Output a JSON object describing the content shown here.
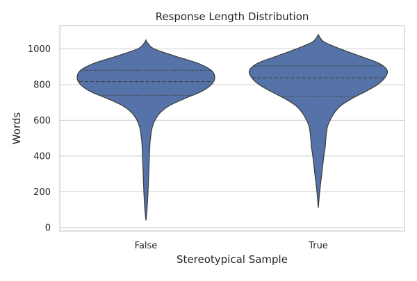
{
  "chart_data": {
    "type": "violin",
    "title": "Response Length Distribution",
    "xlabel": "Stereotypical Sample",
    "ylabel": "Words",
    "categories": [
      "False",
      "True"
    ],
    "ylim": [
      -20,
      1130
    ],
    "yticks": [
      0,
      200,
      400,
      600,
      800,
      1000
    ],
    "grid": "horizontal",
    "color": "#5573a8",
    "violins": [
      {
        "category": "False",
        "min": 40,
        "max": 1050,
        "q1": 740,
        "median": 817,
        "q3": 880,
        "density_profile": [
          [
            40,
            0.0
          ],
          [
            100,
            0.015
          ],
          [
            200,
            0.03
          ],
          [
            300,
            0.04
          ],
          [
            400,
            0.05
          ],
          [
            480,
            0.06
          ],
          [
            560,
            0.09
          ],
          [
            600,
            0.13
          ],
          [
            640,
            0.2
          ],
          [
            680,
            0.33
          ],
          [
            720,
            0.55
          ],
          [
            760,
            0.8
          ],
          [
            800,
            0.95
          ],
          [
            840,
            1.0
          ],
          [
            880,
            0.95
          ],
          [
            920,
            0.75
          ],
          [
            960,
            0.42
          ],
          [
            1000,
            0.12
          ],
          [
            1030,
            0.03
          ],
          [
            1050,
            0.0
          ]
        ]
      },
      {
        "category": "True",
        "min": 110,
        "max": 1080,
        "q1": 735,
        "median": 838,
        "q3": 905,
        "density_profile": [
          [
            110,
            0.0
          ],
          [
            200,
            0.02
          ],
          [
            300,
            0.05
          ],
          [
            400,
            0.08
          ],
          [
            450,
            0.1
          ],
          [
            500,
            0.11
          ],
          [
            560,
            0.13
          ],
          [
            600,
            0.17
          ],
          [
            640,
            0.23
          ],
          [
            680,
            0.32
          ],
          [
            720,
            0.48
          ],
          [
            760,
            0.68
          ],
          [
            800,
            0.86
          ],
          [
            840,
            0.97
          ],
          [
            880,
            1.0
          ],
          [
            920,
            0.88
          ],
          [
            960,
            0.6
          ],
          [
            1000,
            0.32
          ],
          [
            1040,
            0.08
          ],
          [
            1080,
            0.0
          ]
        ]
      }
    ]
  }
}
